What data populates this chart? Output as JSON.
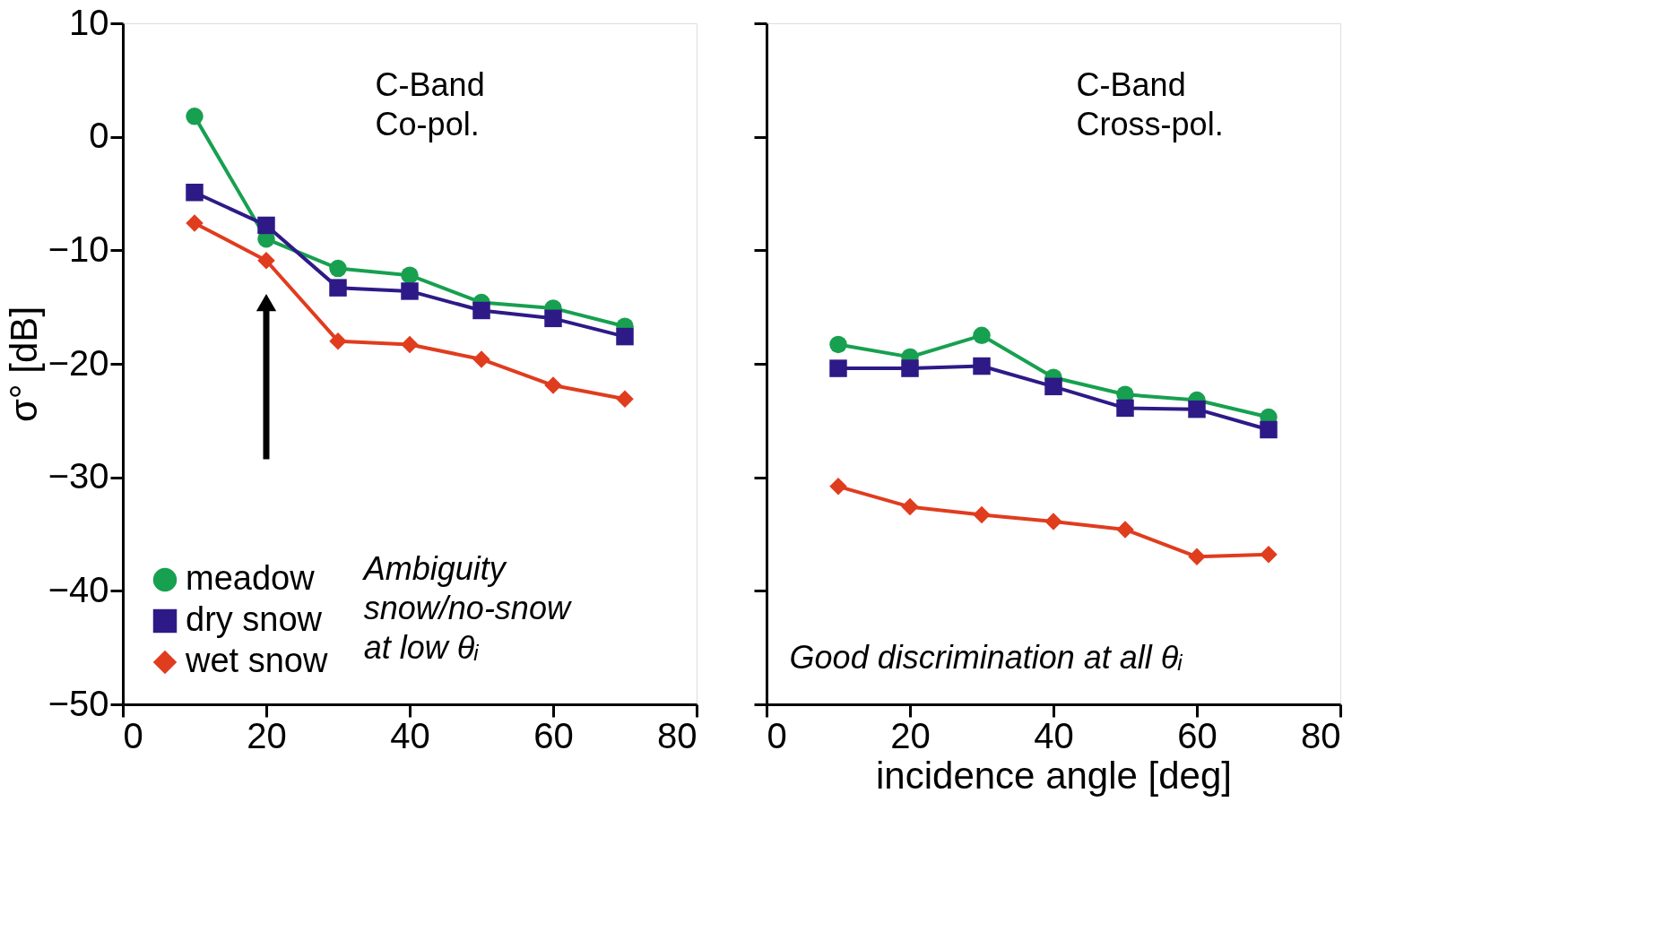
{
  "chart_data": [
    {
      "type": "line",
      "ylabel": "σ° [dB]",
      "x": [
        10,
        20,
        30,
        40,
        50,
        60,
        70
      ],
      "xlim": [
        0,
        80
      ],
      "xticks": [
        0,
        20,
        40,
        60,
        80
      ],
      "ylim": [
        -50,
        10
      ],
      "yticks": [
        -50,
        -40,
        -30,
        -20,
        -10,
        0,
        10
      ],
      "grid": false,
      "legend": "bottom left",
      "line_style": "solid",
      "series": [
        {
          "name": "meadow",
          "color": "#17a050",
          "marker": "circle",
          "values": [
            1.8,
            -9.0,
            -11.6,
            -12.2,
            -14.6,
            -15.1,
            -16.7
          ]
        },
        {
          "name": "dry snow",
          "color": "#2e1a87",
          "marker": "square",
          "values": [
            -4.9,
            -7.8,
            -13.3,
            -13.6,
            -15.3,
            -16.0,
            -17.6
          ]
        },
        {
          "name": "wet snow",
          "color": "#e03c1e",
          "marker": "diamond",
          "values": [
            -7.6,
            -10.9,
            -18.0,
            -18.3,
            -19.6,
            -21.9,
            -23.1
          ]
        }
      ],
      "annotations": [
        "C-Band\nCo-pol.",
        "Ambiguity\nsnow/no-snow\nat low θᵢ"
      ]
    },
    {
      "type": "line",
      "xlabel": "incidence angle [deg]",
      "x": [
        10,
        20,
        30,
        40,
        50,
        60,
        70
      ],
      "xlim": [
        0,
        80
      ],
      "xticks": [
        0,
        20,
        40,
        60,
        80
      ],
      "ylim": [
        -50,
        10
      ],
      "yticks": [
        -50,
        -40,
        -30,
        -20,
        -10,
        0,
        10
      ],
      "grid": false,
      "legend": false,
      "tick_labels": "x",
      "line_style": "solid",
      "series": [
        {
          "color": "#17a050",
          "marker": "circle",
          "values": [
            -18.3,
            -19.4,
            -17.5,
            -21.2,
            -22.7,
            -23.2,
            -24.7
          ]
        },
        {
          "color": "#2e1a87",
          "marker": "square",
          "values": [
            -20.4,
            -20.4,
            -20.2,
            -22.0,
            -23.9,
            -24.0,
            -25.8
          ]
        },
        {
          "color": "#e03c1e",
          "marker": "diamond",
          "values": [
            -30.8,
            -32.6,
            -33.3,
            -33.9,
            -34.6,
            -37.0,
            -36.8
          ]
        }
      ],
      "annotations": [
        "C-Band\nCross-pol.",
        "Good discrimination at all θᵢ"
      ]
    }
  ]
}
